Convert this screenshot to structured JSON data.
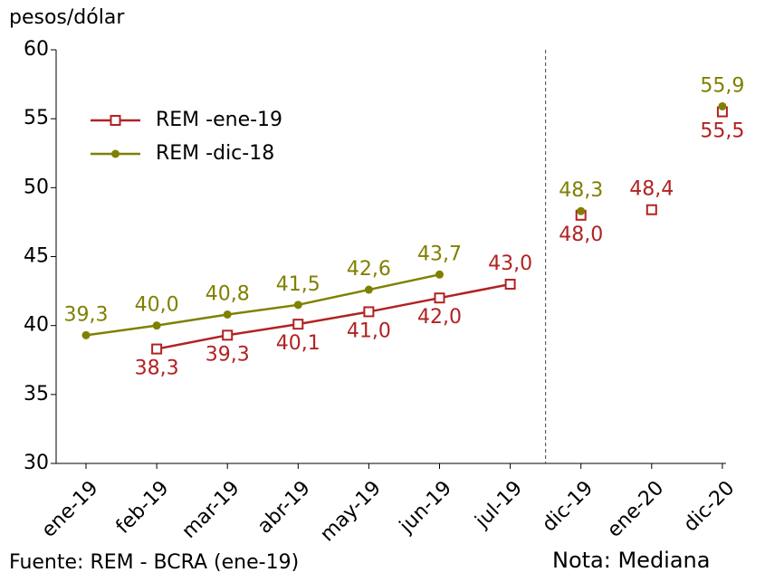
{
  "chart_data": {
    "type": "line",
    "y_axis_label": "pesos/dólar",
    "categories": [
      "ene-19",
      "feb-19",
      "mar-19",
      "abr-19",
      "may-19",
      "jun-19",
      "jul-19",
      "dic-19",
      "ene-20",
      "dic-20"
    ],
    "divider_after": "jul-19",
    "series": [
      {
        "name": "REM -ene-19",
        "color": "#b22222",
        "marker": "square",
        "values": [
          null,
          38.3,
          39.3,
          40.1,
          41.0,
          42.0,
          43.0,
          48.0,
          48.4,
          55.5
        ],
        "value_labels": [
          null,
          "38,3",
          "39,3",
          "40,1",
          "41,0",
          "42,0",
          "43,0",
          "48,0",
          "48,4",
          "55,5"
        ]
      },
      {
        "name": "REM -dic-18",
        "color": "#808000",
        "marker": "circle",
        "values": [
          39.3,
          40.0,
          40.8,
          41.5,
          42.6,
          43.7,
          null,
          48.3,
          null,
          55.9
        ],
        "value_labels": [
          "39,3",
          "40,0",
          "40,8",
          "41,5",
          "42,6",
          "43,7",
          null,
          "48,3",
          null,
          "55,9"
        ]
      }
    ],
    "ylim": [
      30,
      60
    ],
    "yticks": [
      30,
      35,
      40,
      45,
      50,
      55,
      60
    ],
    "source": "Fuente: REM - BCRA (ene-19)",
    "note": "Nota: Mediana"
  }
}
